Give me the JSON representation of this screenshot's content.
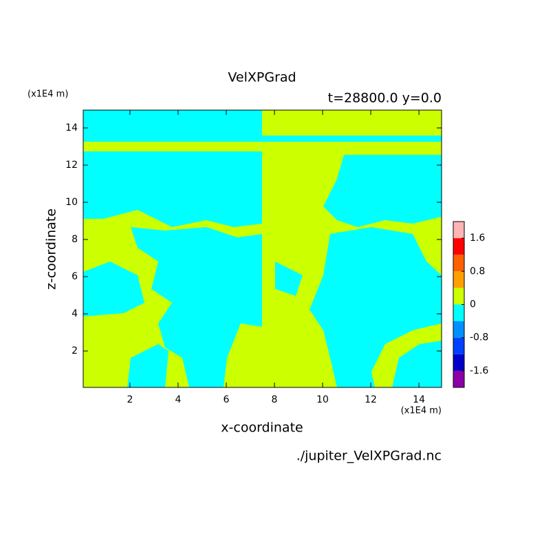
{
  "chart_data": {
    "type": "contour",
    "title": "VelXPGrad",
    "subtitle": "t=28800.0 y=0.0",
    "x_label": "x-coordinate",
    "y_label": "z-coordinate",
    "x_unit": "(x1E4 m)",
    "y_unit": "(x1E4 m)",
    "source": "./jupiter_VelXPGrad.nc",
    "xlim": [
      0.06,
      14.94
    ],
    "ylim": [
      0.04,
      14.96
    ],
    "xticks": [
      2,
      4,
      6,
      8,
      10,
      12,
      14
    ],
    "yticks": [
      2,
      4,
      6,
      8,
      10,
      12,
      14
    ],
    "colorbar": {
      "bounds": [
        -2.0,
        -1.6,
        -1.2,
        -0.8,
        -0.4,
        0,
        0.4,
        0.8,
        1.2,
        1.6,
        2.0
      ],
      "colors": [
        "#8c00a8",
        "#0000c8",
        "#0040ff",
        "#0090ff",
        "#00ffff",
        "#ccff00",
        "#ffa000",
        "#ff6000",
        "#ff0000",
        "#ffb4b4"
      ],
      "ticks": [
        -1.6,
        -0.8,
        0,
        0.8,
        1.6
      ]
    }
  }
}
